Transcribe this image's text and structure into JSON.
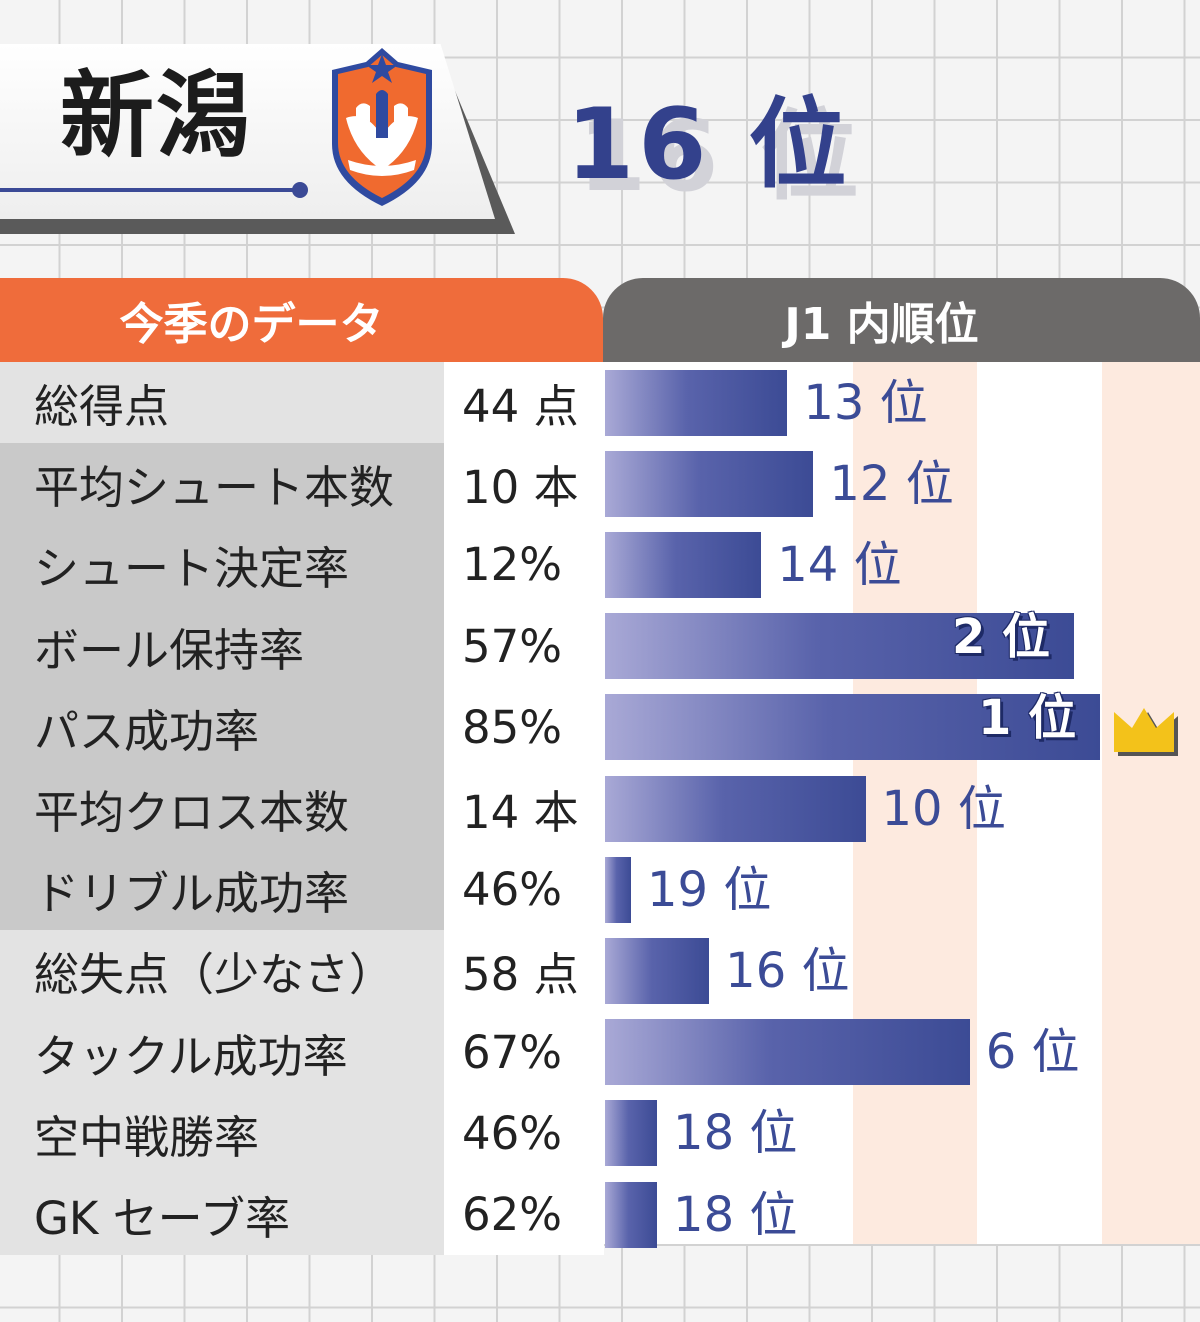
{
  "team": {
    "name": "新潟",
    "season_rank": "16 位"
  },
  "headers": {
    "left": "今季のデータ",
    "right": "J1 内順位"
  },
  "chart_data": {
    "type": "bar",
    "categories": [
      "総得点",
      "平均シュート本数",
      "シュート決定率",
      "ボール保持率",
      "パス成功率",
      "平均クロス本数",
      "ドリブル成功率",
      "総失点（少なさ）",
      "タックル成功率",
      "空中戦勝率",
      "GK セーブ率"
    ],
    "values_text": [
      "44 点",
      "10 本",
      "12%",
      "57%",
      "85%",
      "14 本",
      "46%",
      "58 点",
      "67%",
      "46%",
      "62%"
    ],
    "series": [
      {
        "values": [
          13,
          12,
          14,
          2,
          1,
          10,
          19,
          16,
          6,
          18,
          18
        ]
      }
    ],
    "rank_labels": [
      "13 位",
      "12 位",
      "14 位",
      "2 位",
      "1 位",
      "10 位",
      "19 位",
      "16 位",
      "6 位",
      "18 位",
      "18 位"
    ],
    "rank_range": [
      1,
      20
    ],
    "sections": [
      "offense",
      "offense",
      "offense",
      "offense",
      "offense",
      "offense",
      "offense",
      "defense",
      "defense",
      "defense",
      "defense"
    ],
    "highlight": {
      "index": 4,
      "icon": "crown-icon",
      "color": "#f3c21a"
    },
    "colors": {
      "bar_start": "#a9a9d6",
      "bar_end": "#3c4b95",
      "header_left": "#ef6c3b",
      "header_right": "#6c6a69"
    }
  }
}
